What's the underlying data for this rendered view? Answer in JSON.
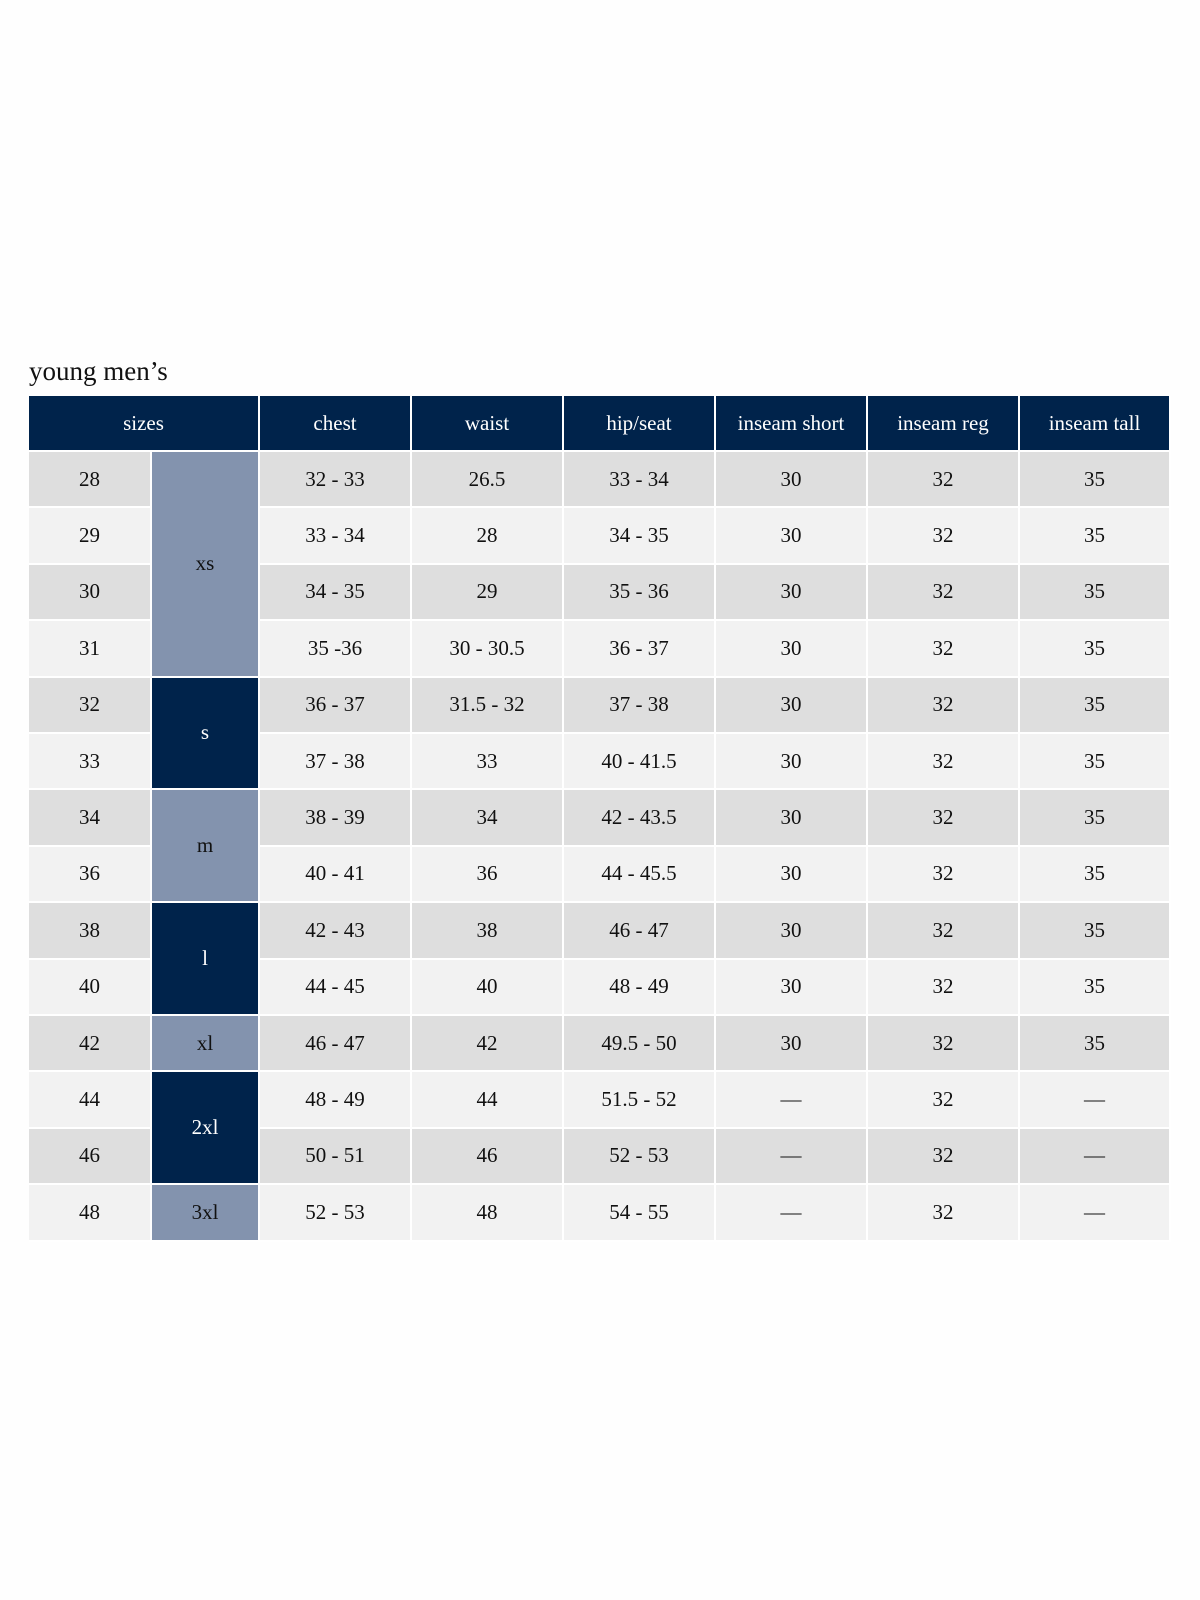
{
  "title": "young men’s",
  "header": [
    "sizes",
    "chest",
    "waist",
    "hip/seat",
    "inseam short",
    "inseam reg",
    "inseam tall"
  ],
  "groups": [
    {
      "label": "xs",
      "rows": [
        [
          "28",
          "32 - 33",
          "26.5",
          "33 - 34",
          "30",
          "32",
          "35"
        ],
        [
          "29",
          "33 - 34",
          "28",
          "34 - 35",
          "30",
          "32",
          "35"
        ],
        [
          "30",
          "34 - 35",
          "29",
          "35 - 36",
          "30",
          "32",
          "35"
        ],
        [
          "31",
          "35 -36",
          "30 - 30.5",
          "36 - 37",
          "30",
          "32",
          "35"
        ]
      ]
    },
    {
      "label": "s",
      "rows": [
        [
          "32",
          "36 - 37",
          "31.5 - 32",
          "37 - 38",
          "30",
          "32",
          "35"
        ],
        [
          "33",
          "37 - 38",
          "33",
          "40 - 41.5",
          "30",
          "32",
          "35"
        ]
      ]
    },
    {
      "label": "m",
      "rows": [
        [
          "34",
          "38 - 39",
          "34",
          "42 - 43.5",
          "30",
          "32",
          "35"
        ],
        [
          "36",
          "40 - 41",
          "36",
          "44 - 45.5",
          "30",
          "32",
          "35"
        ]
      ]
    },
    {
      "label": "l",
      "rows": [
        [
          "38",
          "42 - 43",
          "38",
          "46 - 47",
          "30",
          "32",
          "35"
        ],
        [
          "40",
          "44 - 45",
          "40",
          "48 - 49",
          "30",
          "32",
          "35"
        ]
      ]
    },
    {
      "label": "xl",
      "rows": [
        [
          "42",
          "46 - 47",
          "42",
          "49.5 - 50",
          "30",
          "32",
          "35"
        ]
      ]
    },
    {
      "label": "2xl",
      "rows": [
        [
          "44",
          "48 - 49",
          "44",
          "51.5 - 52",
          "—",
          "32",
          "—"
        ],
        [
          "46",
          "50 - 51",
          "46",
          "52 - 53",
          "—",
          "32",
          "—"
        ]
      ]
    },
    {
      "label": "3xl",
      "rows": [
        [
          "48",
          "52 - 53",
          "48",
          "54 - 55",
          "—",
          "32",
          "—"
        ]
      ]
    }
  ]
}
